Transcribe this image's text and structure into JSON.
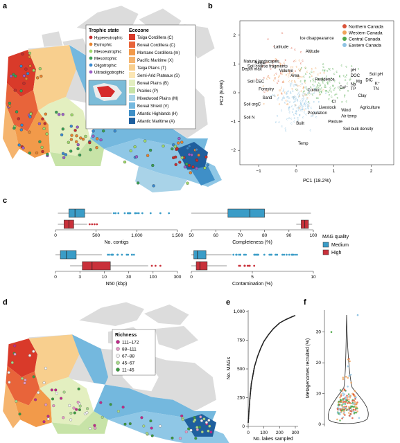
{
  "panel_labels": {
    "a": "a",
    "b": "b",
    "c": "c",
    "d": "d",
    "e": "e",
    "f": "f"
  },
  "legend_a": {
    "trophic_title": "Trophic state",
    "ecozone_title": "Ecozone",
    "trophic": [
      {
        "label": "Hypereutrophic",
        "color": "#c62d2d"
      },
      {
        "label": "Eutrophic",
        "color": "#e8842f"
      },
      {
        "label": "Mesoeutrophic",
        "color": "#9ed86a"
      },
      {
        "label": "Mesotrophic",
        "color": "#3aa055"
      },
      {
        "label": "Oligotrophic",
        "color": "#3a8ad0"
      },
      {
        "label": "Ultraoligotrophic",
        "color": "#9c5fc6"
      }
    ],
    "ecozones": [
      {
        "label": "Taiga Cordillera (C)",
        "color": "#d93a2a"
      },
      {
        "label": "Boreal Cordillera (C)",
        "color": "#e8643a"
      },
      {
        "label": "Montane Cordillera (m)",
        "color": "#f29a4a"
      },
      {
        "label": "Pacific Maritime (X)",
        "color": "#f5b46e"
      },
      {
        "label": "Taiga Plains (T)",
        "color": "#f8cf8e"
      },
      {
        "label": "Semi-Arid Plateaux (S)",
        "color": "#fbe6b4"
      },
      {
        "label": "Boreal Plains (B)",
        "color": "#e3efc0"
      },
      {
        "label": "Prairies (P)",
        "color": "#c7e3a7"
      },
      {
        "label": "Mixedwood Plains (M)",
        "color": "#a9d3e8"
      },
      {
        "label": "Boreal Shield (V)",
        "color": "#74b8de"
      },
      {
        "label": "Atlantic Highlands (H)",
        "color": "#3f8fc7"
      },
      {
        "label": "Atlantic Maritime (A)",
        "color": "#1f5f9e"
      }
    ]
  },
  "pca": {
    "xlabel": "PC1 (18.2%)",
    "ylabel": "PC2 (9.9%)",
    "xticks": [
      "−1",
      "0",
      "1",
      "2"
    ],
    "yticks": [
      "2",
      "1",
      "0",
      "−1",
      "−2"
    ],
    "legend": [
      {
        "label": "Northern Canada",
        "color": "#d9533a"
      },
      {
        "label": "Western Canada",
        "color": "#f0a35a"
      },
      {
        "label": "Central Canada",
        "color": "#4fa84a"
      },
      {
        "label": "Eastern Canada",
        "color": "#8fc3e3"
      }
    ],
    "vectors": [
      "Ice disappearance",
      "Latitude",
      "Altitude",
      "Natural landscapes",
      "Slope",
      "Soil coarse fragments",
      "Depth max",
      "Volume",
      "Area",
      "Residence",
      "pH",
      "Soil pH",
      "DOC",
      "DIC",
      "K⁺",
      "TN",
      "Mg",
      "Na",
      "TP",
      "Ca²⁺",
      "Colour",
      "Clay",
      "Agriculture",
      "Soil CEC",
      "Forestry",
      "Cl",
      "Sand",
      "Soil orgC",
      "Livestock",
      "Population",
      "Wind",
      "Air temp",
      "Soil N",
      "Built",
      "Pasture",
      "Soil bulk density",
      "Temp"
    ]
  },
  "box": {
    "legend_title": "MAG quality",
    "legend": [
      {
        "label": "Medium",
        "color": "#3a9cc7"
      },
      {
        "label": "High",
        "color": "#c9303a"
      }
    ],
    "contigs": {
      "xlabel": "No. contigs",
      "ticks": [
        "0",
        "500",
        "1,000",
        "1,500"
      ]
    },
    "completeness": {
      "xlabel": "Completeness (%)",
      "ticks": [
        "50",
        "60",
        "70",
        "80",
        "90",
        "100"
      ]
    },
    "n50": {
      "xlabel": "N50 (kbp)",
      "ticks": [
        "0",
        "3",
        "10",
        "30",
        "100",
        "300"
      ]
    },
    "contamination": {
      "xlabel": "Contamination (%)",
      "ticks": [
        "0",
        "5",
        "10"
      ]
    }
  },
  "richness": {
    "title": "Richness",
    "items": [
      {
        "label": "111–172",
        "color": "#c2278a"
      },
      {
        "label": "88–111",
        "color": "#e49ac6"
      },
      {
        "label": "67–88",
        "color": "#f3f3f3"
      },
      {
        "label": "45–67",
        "color": "#a7d98a"
      },
      {
        "label": "11–45",
        "color": "#3a9a3f"
      }
    ]
  },
  "accum": {
    "xlabel": "No. lakes sampled",
    "ylabel": "No. MAGs",
    "xticks": [
      "0",
      "100",
      "200",
      "300"
    ],
    "yticks": [
      "0",
      "250",
      "500",
      "750",
      "1,000"
    ],
    "chart_data": {
      "type": "line",
      "x": [
        0,
        10,
        20,
        40,
        60,
        80,
        100,
        130,
        160,
        200,
        240,
        280,
        300
      ],
      "y": [
        30,
        230,
        370,
        520,
        610,
        680,
        740,
        800,
        850,
        900,
        930,
        955,
        965
      ]
    }
  },
  "violin": {
    "ylabel": "Metagenomes recruited (%)",
    "yticks": [
      "0",
      "10",
      "20",
      "30"
    ]
  }
}
